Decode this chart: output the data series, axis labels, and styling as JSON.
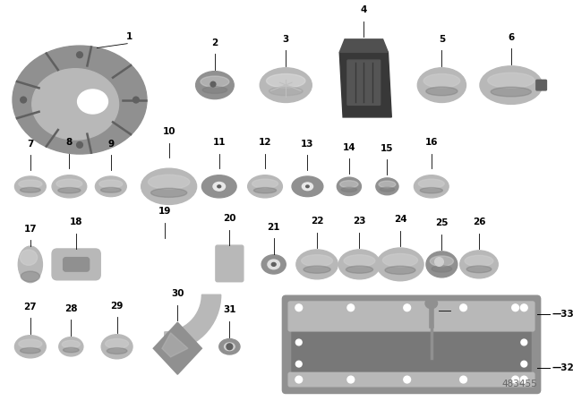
{
  "bg_color": "#ffffff",
  "diagram_number": "483455",
  "lc": "#b8b8b8",
  "mc": "#909090",
  "dc": "#606060",
  "bk": "#2a2a2a",
  "shade_light": "#d0d0d0",
  "shade_dark": "#787878",
  "label_fs": 7.5
}
